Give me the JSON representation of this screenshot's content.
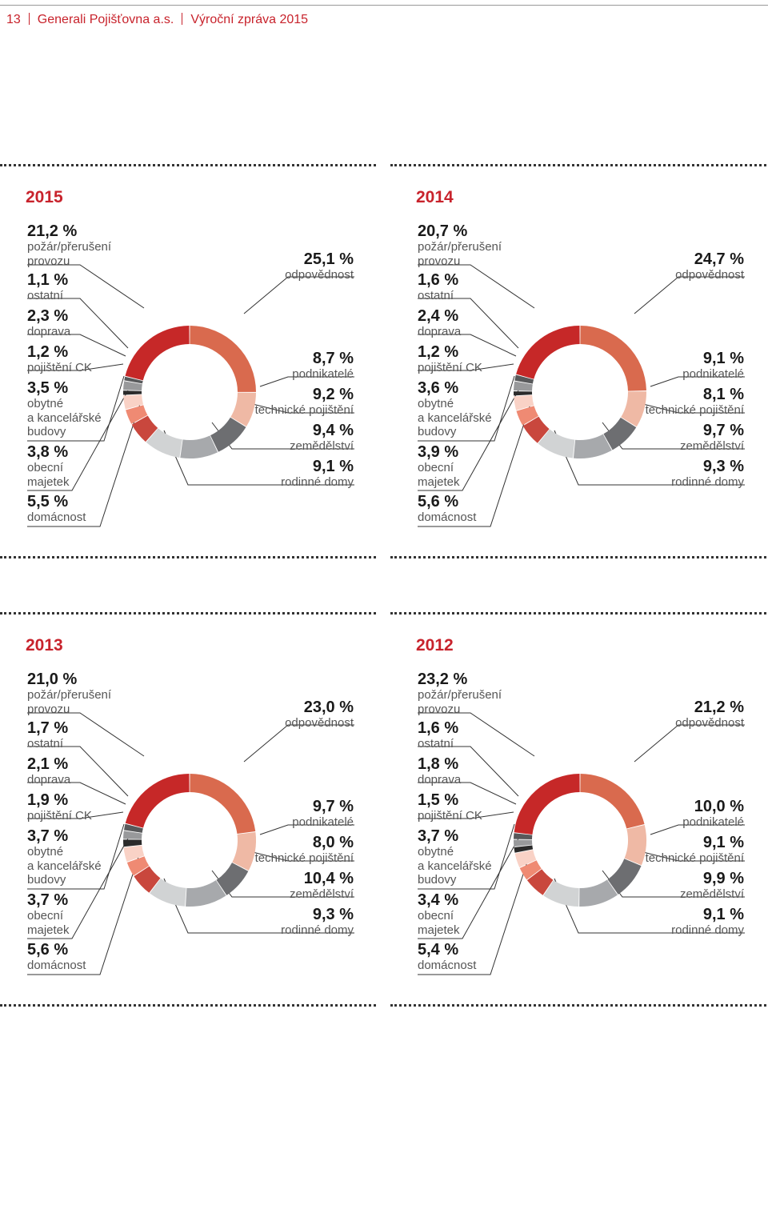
{
  "header": {
    "page_number": "13",
    "company": "Generali Pojišťovna a.s.",
    "report": "Výroční zpráva 2015"
  },
  "colors": {
    "accent_red": "#c8232c",
    "pozar": "#c62828",
    "odpovednost": "#d96a4e",
    "podnikatele": "#efb9a5",
    "technicke": "#6d6e71",
    "zemedelstvi": "#a7a9ac",
    "rodinne": "#d1d3d4",
    "domacnost": "#c9473d",
    "obecni": "#ef8a73",
    "obytne": "#f9d2c6",
    "pojisteni_ck": "#2b2b2b",
    "doprava": "#98999b",
    "ostatni": "#58595b"
  },
  "chart_data": [
    {
      "type": "pie",
      "title": "2015",
      "categories": [
        "odpovědnost",
        "podnikatelé",
        "technické pojištění",
        "zemědělství",
        "rodinné domy",
        "domácnost",
        "obecní majetek",
        "obytné a kancelářské budovy",
        "pojištění CK",
        "doprava",
        "ostatní",
        "požár/přerušení provozu"
      ],
      "values": [
        25.1,
        8.7,
        9.2,
        9.4,
        9.1,
        5.5,
        3.8,
        3.5,
        1.2,
        2.3,
        1.1,
        21.2
      ],
      "labels": [
        "25,1 %",
        "8,7 %",
        "9,2 %",
        "9,4 %",
        "9,1 %",
        "5,5 %",
        "3,8 %",
        "3,5 %",
        "1,2 %",
        "2,3 %",
        "1,1 %",
        "21,2 %"
      ]
    },
    {
      "type": "pie",
      "title": "2014",
      "categories": [
        "odpovědnost",
        "podnikatelé",
        "technické pojištění",
        "zemědělství",
        "rodinné domy",
        "domácnost",
        "obecní majetek",
        "obytné a kancelářské budovy",
        "pojištění CK",
        "doprava",
        "ostatní",
        "požár/přerušení provozu"
      ],
      "values": [
        24.7,
        9.1,
        8.1,
        9.7,
        9.3,
        5.6,
        3.9,
        3.6,
        1.2,
        2.4,
        1.6,
        20.7
      ],
      "labels": [
        "24,7 %",
        "9,1 %",
        "8,1 %",
        "9,7 %",
        "9,3 %",
        "5,6 %",
        "3,9 %",
        "3,6 %",
        "1,2 %",
        "2,4 %",
        "1,6 %",
        "20,7 %"
      ]
    },
    {
      "type": "pie",
      "title": "2013",
      "categories": [
        "odpovědnost",
        "podnikatelé",
        "technické pojištění",
        "zemědělství",
        "rodinné domy",
        "domácnost",
        "obecní majetek",
        "obytné a kancelářské budovy",
        "pojištění CK",
        "doprava",
        "ostatní",
        "požár/přerušení provozu"
      ],
      "values": [
        23.0,
        9.7,
        8.0,
        10.4,
        9.3,
        5.6,
        3.7,
        3.7,
        1.9,
        2.1,
        1.7,
        21.0
      ],
      "labels": [
        "23,0 %",
        "9,7 %",
        "8,0 %",
        "10,4 %",
        "9,3 %",
        "5,6 %",
        "3,7 %",
        "3,7 %",
        "1,9 %",
        "2,1 %",
        "1,7 %",
        "21,0 %"
      ]
    },
    {
      "type": "pie",
      "title": "2012",
      "categories": [
        "odpovědnost",
        "podnikatelé",
        "technické pojištění",
        "zemědělství",
        "rodinné domy",
        "domácnost",
        "obecní majetek",
        "obytné a kancelářské budovy",
        "pojištění CK",
        "doprava",
        "ostatní",
        "požár/přerušení provozu"
      ],
      "values": [
        21.2,
        10.0,
        9.1,
        9.9,
        9.1,
        5.4,
        3.4,
        3.7,
        1.5,
        1.8,
        1.6,
        23.2
      ],
      "labels": [
        "21,2 %",
        "10,0 %",
        "9,1 %",
        "9,9 %",
        "9,1 %",
        "5,4 %",
        "3,4 %",
        "3,7 %",
        "1,5 %",
        "1,8 %",
        "1,6 %",
        "23,2 %"
      ]
    }
  ],
  "captions": {
    "odpovednost": "odpovědnost",
    "podnikatele": "podnikatelé",
    "technicke": "technické pojištění",
    "zemedelstvi": "zemědělství",
    "rodinne": "rodinné domy",
    "domacnost": "domácnost",
    "obecni_1": "obecní",
    "obecni_2": "majetek",
    "obytne_1": "obytné",
    "obytne_2": "a kancelářské",
    "obytne_3": "budovy",
    "pojisteni_ck": "pojištění CK",
    "doprava": "doprava",
    "ostatni": "ostatní",
    "pozar_1": "požár/přerušení",
    "pozar_2": "provozu"
  }
}
